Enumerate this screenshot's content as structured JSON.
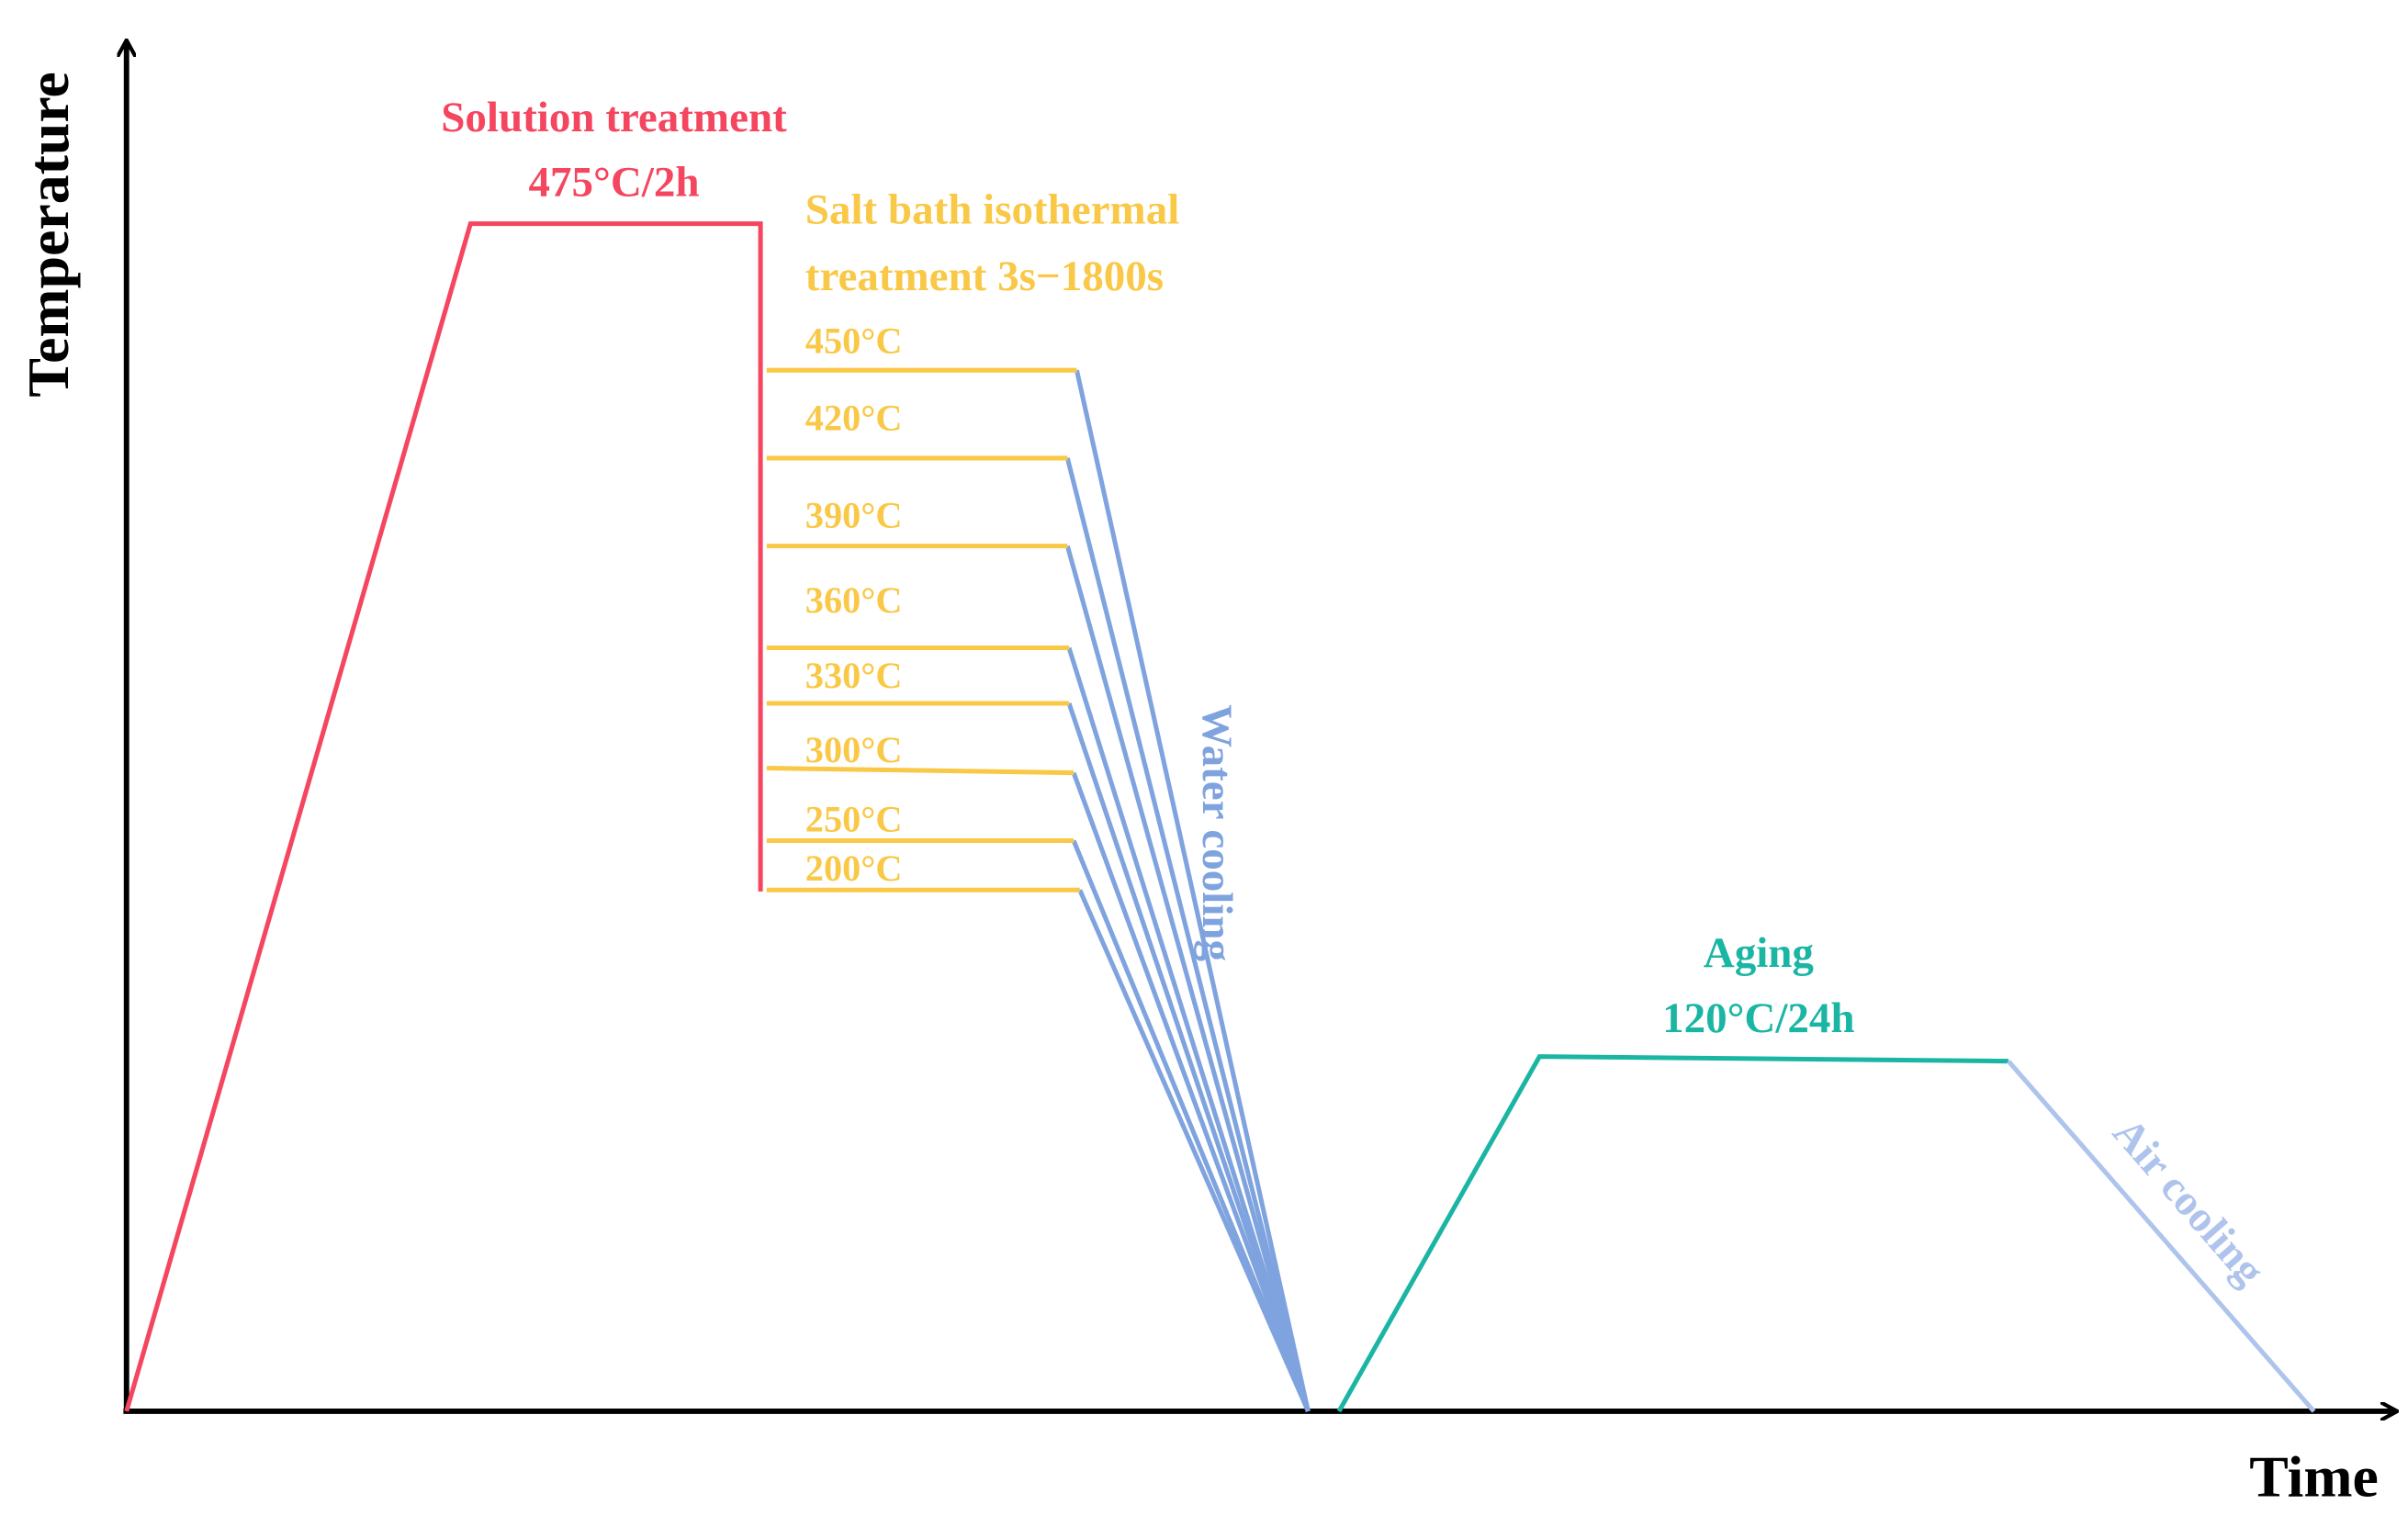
{
  "axes": {
    "y_label": "Temperature",
    "x_label": "Time"
  },
  "solution": {
    "title": "Solution treatment",
    "condition": "475°C/2h"
  },
  "salt_bath": {
    "title": [
      "Salt bath isothermal",
      "treatment 3s−1800s"
    ],
    "temperatures": [
      "450°C",
      "420°C",
      "390°C",
      "360°C",
      "330°C",
      "300°C",
      "250°C",
      "200°C"
    ]
  },
  "water_cooling": "Water cooling",
  "aging": {
    "title": "Aging",
    "condition": "120°C/24h"
  },
  "air_cooling": "Air cooling"
}
